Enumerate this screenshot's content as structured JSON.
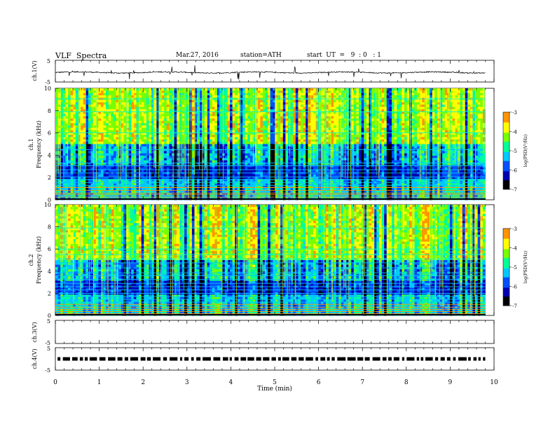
{
  "header": {
    "title": "VLF  Spectra",
    "date": "Mar.27, 2016",
    "station": "station=ATH",
    "start_ut": "start  UT  =   9  : 0   : 1"
  },
  "chart_data": {
    "type": "spectrogram",
    "x_axis": {
      "label": "Time  (min)",
      "range": [
        0,
        10
      ],
      "ticks": [
        "0",
        "1",
        "2",
        "3",
        "4",
        "5",
        "6",
        "7",
        "8",
        "9",
        "10"
      ],
      "data_end_min": 9.8
    },
    "panels": [
      {
        "id": "ch1-waveform",
        "type": "line",
        "ylabel": "ch.1(V)",
        "ylim": [
          -5,
          5
        ],
        "yticks": [
          "5",
          "-5"
        ],
        "description_level": -0.6
      },
      {
        "id": "ch1-spectrogram",
        "type": "heatmap",
        "ylabel": "Frequency  (kHz)",
        "channel_label": "ch.1",
        "ylim": [
          0,
          10
        ],
        "yticks": [
          "0",
          "2",
          "4",
          "6",
          "8",
          "10"
        ],
        "colorbar": {
          "label": "log(PSD(V²/Hz)",
          "range": [
            -7,
            -3
          ],
          "ticks": [
            "-3",
            "-4",
            "-5",
            "-6",
            "-7"
          ],
          "colors": [
            "#000000",
            "#0000b4",
            "#0050ff",
            "#00c8ff",
            "#00ff96",
            "#78ff00",
            "#ffff00",
            "#ff9600",
            "#ff0000",
            "#ffffff"
          ]
        },
        "hum_lines_khz": [
          0.1,
          0.25,
          0.45,
          0.6,
          0.85,
          1.1,
          1.3,
          1.55,
          1.8,
          2.05,
          2.4,
          2.7,
          3.05,
          3.3,
          4.5,
          6.0,
          7.9,
          9.05
        ]
      },
      {
        "id": "ch2-spectrogram",
        "type": "heatmap",
        "ylabel": "Frequency  (kHz)",
        "channel_label": "ch.2",
        "ylim": [
          0,
          10
        ],
        "yticks": [
          "0",
          "2",
          "4",
          "6",
          "8",
          "10"
        ],
        "colorbar": {
          "label": "log(PSD(V²/Hz)",
          "range": [
            -7,
            -3
          ],
          "ticks": [
            "-3",
            "-4",
            "-5",
            "-6",
            "-7"
          ],
          "colors": [
            "#000000",
            "#0000b4",
            "#0050ff",
            "#00c8ff",
            "#00ff96",
            "#78ff00",
            "#ffff00",
            "#ff9600",
            "#ff0000",
            "#ffffff"
          ]
        },
        "hum_lines_khz": [
          0.15,
          0.35,
          0.55,
          0.75,
          1.0,
          1.2,
          1.45,
          1.7,
          2.0,
          2.3,
          2.6,
          2.9,
          3.25,
          3.6,
          3.85,
          4.3,
          4.75,
          5.1,
          5.5,
          6.0,
          7.9
        ]
      },
      {
        "id": "ch3-waveform",
        "type": "line",
        "ylabel": "ch.3(V)",
        "ylim": [
          -5,
          5
        ],
        "yticks": [
          "5",
          "-5"
        ],
        "description_level": null
      },
      {
        "id": "ch4-waveform",
        "type": "line",
        "ylabel": "ch.4(V)",
        "ylim": [
          -5,
          5
        ],
        "yticks": [
          "5",
          "-5"
        ],
        "description_level": 0
      }
    ]
  }
}
